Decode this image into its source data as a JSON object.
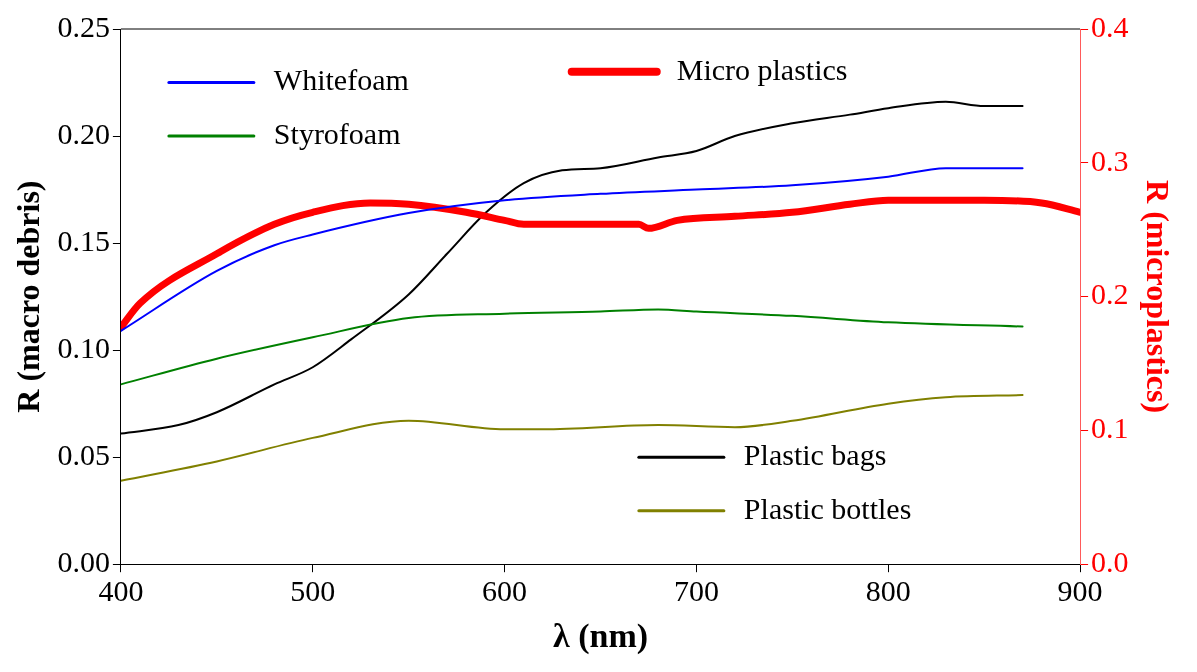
{
  "chart_data": {
    "type": "line",
    "xlabel": "λ (nm)",
    "ylabel": "R (macro debris)",
    "y2label": "R (microplastics)",
    "xlim": [
      400,
      900
    ],
    "xticks": [
      400,
      500,
      600,
      700,
      800,
      900
    ],
    "ylim": [
      0,
      0.25
    ],
    "yticks": [
      {
        "value": 0,
        "label": "0.00"
      },
      {
        "value": 0.05,
        "label": "0.05"
      },
      {
        "value": 0.1,
        "label": "0.10"
      },
      {
        "value": 0.15,
        "label": "0.15"
      },
      {
        "value": 0.2,
        "label": "0.20"
      },
      {
        "value": 0.25,
        "label": "0.25"
      }
    ],
    "y2lim": [
      0,
      0.4
    ],
    "y2ticks": [
      {
        "value": 0,
        "label": "0.0"
      },
      0.1,
      0.2,
      0.3,
      0.4
    ],
    "grid": false,
    "legend": "top left",
    "line_style": "solid",
    "marker": "none",
    "series": [
      {
        "name": "Whitefoam",
        "color": "#0000ff",
        "x": [
          400,
          450,
          480,
          500,
          550,
          600,
          650,
          700,
          750,
          800,
          830,
          870
        ],
        "values": [
          0.109,
          0.137,
          0.149,
          0.154,
          0.164,
          0.17,
          0.173,
          0.175,
          0.177,
          0.181,
          0.185,
          0.185
        ]
      },
      {
        "name": "Styrofoam",
        "color": "#008000",
        "x": [
          400,
          450,
          500,
          550,
          600,
          650,
          680,
          700,
          750,
          800,
          870
        ],
        "values": [
          0.084,
          0.096,
          0.106,
          0.115,
          0.117,
          0.118,
          0.119,
          0.118,
          0.116,
          0.113,
          0.111
        ]
      },
      {
        "name": "Micro plastics",
        "color": "#ff0000",
        "axis": "y2",
        "x": [
          400,
          410,
          450,
          480,
          500,
          530,
          550,
          580,
          600,
          610,
          650,
          670,
          675,
          690,
          720,
          750,
          780,
          800,
          850,
          880,
          900
        ],
        "values": [
          0.177,
          0.195,
          0.232,
          0.254,
          0.263,
          0.27,
          0.269,
          0.263,
          0.257,
          0.254,
          0.254,
          0.254,
          0.251,
          0.257,
          0.26,
          0.263,
          0.269,
          0.272,
          0.272,
          0.27,
          0.263
        ]
      },
      {
        "name": "Plastic bags",
        "color": "#000000",
        "x": [
          400,
          430,
          450,
          480,
          500,
          520,
          550,
          570,
          590,
          610,
          630,
          650,
          680,
          700,
          720,
          750,
          780,
          800,
          830,
          850,
          870
        ],
        "values": [
          0.061,
          0.065,
          0.071,
          0.084,
          0.092,
          0.105,
          0.126,
          0.145,
          0.164,
          0.178,
          0.184,
          0.185,
          0.19,
          0.193,
          0.2,
          0.206,
          0.21,
          0.213,
          0.216,
          0.214,
          0.214
        ]
      },
      {
        "name": "Plastic bottles",
        "color": "#808000",
        "x": [
          400,
          450,
          500,
          550,
          600,
          620,
          680,
          720,
          750,
          800,
          830,
          870
        ],
        "values": [
          0.039,
          0.048,
          0.059,
          0.067,
          0.063,
          0.063,
          0.065,
          0.064,
          0.067,
          0.075,
          0.078,
          0.079
        ]
      }
    ]
  }
}
